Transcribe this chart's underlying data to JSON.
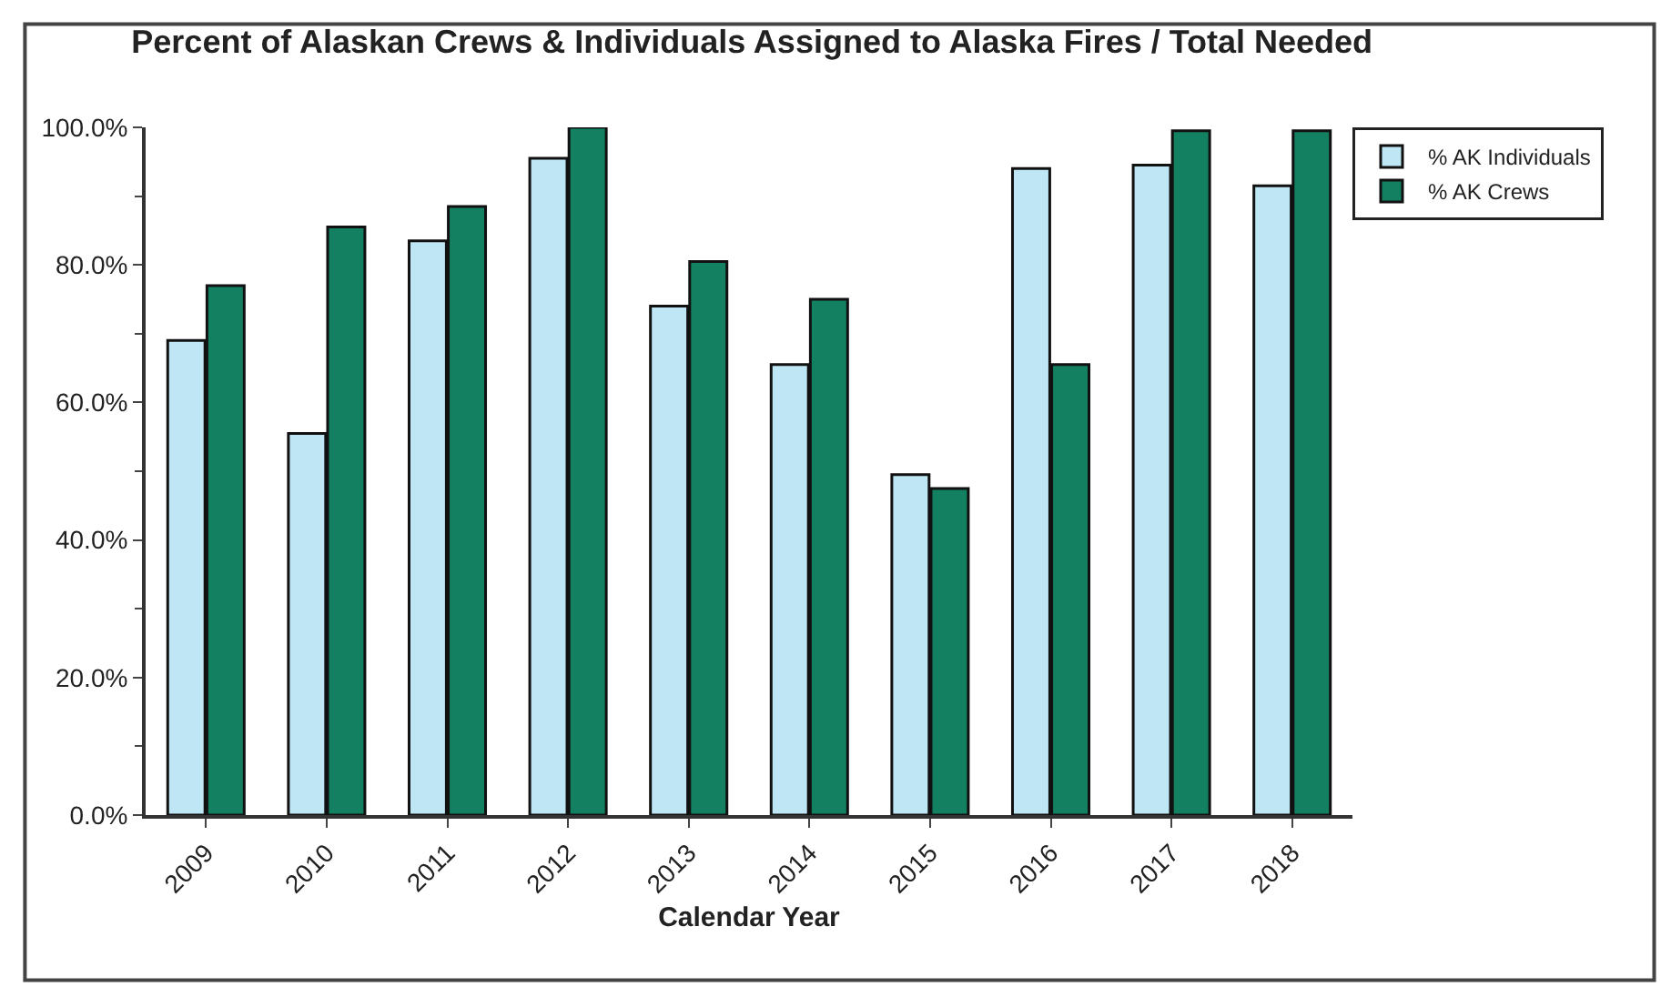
{
  "chart_data": {
    "type": "bar",
    "title": "Percent of Alaskan Crews & Individuals Assigned to Alaska Fires / Total Needed",
    "xlabel": "Calendar Year",
    "categories": [
      "2009",
      "2010",
      "2011",
      "2012",
      "2013",
      "2014",
      "2015",
      "2016",
      "2017",
      "2018"
    ],
    "series": [
      {
        "name": "% AK Individuals",
        "color": "#bfe6f5",
        "values": [
          69,
          55.5,
          83.5,
          95.5,
          74,
          65.5,
          49.5,
          94,
          94.5,
          91.5
        ]
      },
      {
        "name": "% AK Crews",
        "color": "#148062",
        "values": [
          77,
          85.5,
          88.5,
          100,
          80.5,
          75,
          47.5,
          65.5,
          99.5,
          99.5
        ]
      }
    ],
    "ylim": [
      0,
      100
    ],
    "yticks": [
      {
        "value": 0,
        "label": "0.0%"
      },
      {
        "value": 20,
        "label": "20.0%"
      },
      {
        "value": 40,
        "label": "40.0%"
      },
      {
        "value": 60,
        "label": "60.0%"
      },
      {
        "value": 80,
        "label": "80.0%"
      },
      {
        "value": 100,
        "label": "100.0%"
      }
    ],
    "grid": false,
    "legend": "top right"
  }
}
